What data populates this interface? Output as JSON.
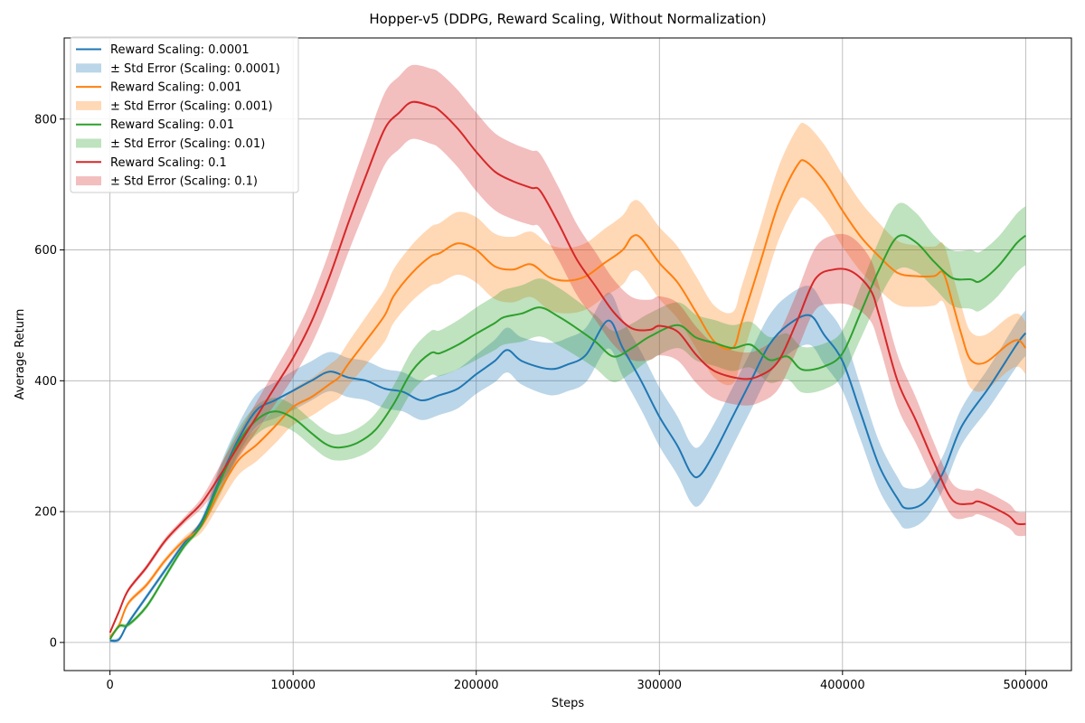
{
  "chart_data": {
    "type": "line",
    "title": "Hopper-v5 (DDPG, Reward Scaling, Without Normalization)",
    "xlabel": "Steps",
    "ylabel": "Average Return",
    "xlim": [
      -25000,
      525000
    ],
    "ylim": [
      -43,
      924
    ],
    "xticks": [
      0,
      100000,
      200000,
      300000,
      400000,
      500000
    ],
    "yticks": [
      0,
      200,
      400,
      600,
      800
    ],
    "grid": true,
    "legend_position": "top-left",
    "legend": [
      "Reward Scaling: 0.0001",
      "± Std Error (Scaling: 0.0001)",
      "Reward Scaling: 0.001",
      "± Std Error (Scaling: 0.001)",
      "Reward Scaling: 0.01",
      "± Std Error (Scaling: 0.01)",
      "Reward Scaling: 0.1",
      "± Std Error (Scaling: 0.1)"
    ],
    "series": [
      {
        "name": "Reward Scaling: 0.0001",
        "band_name": "± Std Error (Scaling: 0.0001)",
        "color": "#1f77b4",
        "points": [
          [
            0,
            3
          ],
          [
            5000,
            5
          ],
          [
            10000,
            30
          ],
          [
            20000,
            70
          ],
          [
            30000,
            110
          ],
          [
            40000,
            150
          ],
          [
            50000,
            185
          ],
          [
            60000,
            250
          ],
          [
            70000,
            310
          ],
          [
            80000,
            355
          ],
          [
            90000,
            370
          ],
          [
            100000,
            385
          ],
          [
            110000,
            400
          ],
          [
            120000,
            414
          ],
          [
            130000,
            405
          ],
          [
            140000,
            400
          ],
          [
            150000,
            388
          ],
          [
            160000,
            383
          ],
          [
            170000,
            370
          ],
          [
            180000,
            378
          ],
          [
            190000,
            388
          ],
          [
            200000,
            410
          ],
          [
            210000,
            430
          ],
          [
            217000,
            447
          ],
          [
            225000,
            430
          ],
          [
            240000,
            418
          ],
          [
            250000,
            425
          ],
          [
            260000,
            440
          ],
          [
            272000,
            492
          ],
          [
            280000,
            450
          ],
          [
            290000,
            400
          ],
          [
            300000,
            345
          ],
          [
            310000,
            300
          ],
          [
            317000,
            260
          ],
          [
            322000,
            255
          ],
          [
            330000,
            290
          ],
          [
            340000,
            345
          ],
          [
            350000,
            400
          ],
          [
            360000,
            455
          ],
          [
            370000,
            485
          ],
          [
            382000,
            500
          ],
          [
            390000,
            470
          ],
          [
            400000,
            430
          ],
          [
            410000,
            350
          ],
          [
            420000,
            270
          ],
          [
            430000,
            220
          ],
          [
            435000,
            205
          ],
          [
            445000,
            215
          ],
          [
            455000,
            260
          ],
          [
            465000,
            330
          ],
          [
            480000,
            390
          ],
          [
            495000,
            455
          ],
          [
            500000,
            473
          ]
        ],
        "err": [
          [
            0,
            3
          ],
          [
            50000,
            5
          ],
          [
            60000,
            20
          ],
          [
            80000,
            25
          ],
          [
            100000,
            30
          ],
          [
            130000,
            30
          ],
          [
            200000,
            30
          ],
          [
            240000,
            40
          ],
          [
            300000,
            45
          ],
          [
            400000,
            45
          ],
          [
            450000,
            25
          ],
          [
            500000,
            35
          ]
        ]
      },
      {
        "name": "Reward Scaling: 0.001",
        "band_name": "± Std Error (Scaling: 0.001)",
        "color": "#ff7f0e",
        "points": [
          [
            0,
            8
          ],
          [
            5000,
            27
          ],
          [
            10000,
            60
          ],
          [
            20000,
            88
          ],
          [
            30000,
            125
          ],
          [
            40000,
            155
          ],
          [
            50000,
            178
          ],
          [
            60000,
            232
          ],
          [
            70000,
            278
          ],
          [
            80000,
            302
          ],
          [
            90000,
            330
          ],
          [
            100000,
            360
          ],
          [
            110000,
            375
          ],
          [
            120000,
            395
          ],
          [
            125000,
            405
          ],
          [
            130000,
            425
          ],
          [
            140000,
            462
          ],
          [
            150000,
            500
          ],
          [
            155000,
            530
          ],
          [
            165000,
            565
          ],
          [
            175000,
            590
          ],
          [
            180000,
            595
          ],
          [
            190000,
            610
          ],
          [
            200000,
            600
          ],
          [
            210000,
            575
          ],
          [
            220000,
            570
          ],
          [
            230000,
            578
          ],
          [
            240000,
            558
          ],
          [
            250000,
            553
          ],
          [
            260000,
            560
          ],
          [
            270000,
            580
          ],
          [
            280000,
            600
          ],
          [
            285000,
            620
          ],
          [
            290000,
            618
          ],
          [
            300000,
            580
          ],
          [
            310000,
            550
          ],
          [
            320000,
            505
          ],
          [
            330000,
            460
          ],
          [
            340000,
            450
          ],
          [
            345000,
            490
          ],
          [
            355000,
            580
          ],
          [
            365000,
            670
          ],
          [
            375000,
            728
          ],
          [
            380000,
            735
          ],
          [
            390000,
            705
          ],
          [
            400000,
            660
          ],
          [
            410000,
            620
          ],
          [
            420000,
            590
          ],
          [
            430000,
            565
          ],
          [
            440000,
            560
          ],
          [
            450000,
            560
          ],
          [
            455000,
            565
          ],
          [
            460000,
            520
          ],
          [
            465000,
            470
          ],
          [
            470000,
            432
          ],
          [
            478000,
            428
          ],
          [
            490000,
            455
          ],
          [
            496000,
            462
          ],
          [
            500000,
            450
          ]
        ],
        "err": [
          [
            0,
            3
          ],
          [
            40000,
            5
          ],
          [
            50000,
            10
          ],
          [
            60000,
            20
          ],
          [
            80000,
            25
          ],
          [
            120000,
            30
          ],
          [
            150000,
            40
          ],
          [
            200000,
            50
          ],
          [
            250000,
            50
          ],
          [
            300000,
            55
          ],
          [
            350000,
            55
          ],
          [
            380000,
            57
          ],
          [
            400000,
            55
          ],
          [
            450000,
            45
          ],
          [
            500000,
            40
          ]
        ]
      },
      {
        "name": "Reward Scaling: 0.01",
        "band_name": "± Std Error (Scaling: 0.01)",
        "color": "#2ca02c",
        "points": [
          [
            0,
            5
          ],
          [
            5000,
            25
          ],
          [
            10000,
            27
          ],
          [
            20000,
            55
          ],
          [
            30000,
            100
          ],
          [
            40000,
            145
          ],
          [
            50000,
            180
          ],
          [
            60000,
            245
          ],
          [
            70000,
            305
          ],
          [
            80000,
            340
          ],
          [
            90000,
            353
          ],
          [
            100000,
            343
          ],
          [
            110000,
            320
          ],
          [
            118000,
            303
          ],
          [
            125000,
            298
          ],
          [
            135000,
            305
          ],
          [
            145000,
            325
          ],
          [
            155000,
            365
          ],
          [
            165000,
            415
          ],
          [
            175000,
            442
          ],
          [
            180000,
            442
          ],
          [
            190000,
            455
          ],
          [
            200000,
            472
          ],
          [
            210000,
            488
          ],
          [
            215000,
            497
          ],
          [
            225000,
            503
          ],
          [
            235000,
            512
          ],
          [
            245000,
            498
          ],
          [
            255000,
            480
          ],
          [
            265000,
            460
          ],
          [
            275000,
            437
          ],
          [
            285000,
            450
          ],
          [
            295000,
            468
          ],
          [
            310000,
            485
          ],
          [
            320000,
            466
          ],
          [
            330000,
            458
          ],
          [
            340000,
            450
          ],
          [
            350000,
            455
          ],
          [
            360000,
            432
          ],
          [
            370000,
            437
          ],
          [
            378000,
            417
          ],
          [
            390000,
            422
          ],
          [
            400000,
            442
          ],
          [
            410000,
            505
          ],
          [
            420000,
            570
          ],
          [
            430000,
            620
          ],
          [
            440000,
            612
          ],
          [
            450000,
            582
          ],
          [
            460000,
            557
          ],
          [
            470000,
            555
          ],
          [
            475000,
            552
          ],
          [
            485000,
            575
          ],
          [
            495000,
            610
          ],
          [
            500000,
            622
          ]
        ],
        "err": [
          [
            0,
            3
          ],
          [
            50000,
            5
          ],
          [
            60000,
            20
          ],
          [
            80000,
            22
          ],
          [
            100000,
            20
          ],
          [
            130000,
            20
          ],
          [
            160000,
            30
          ],
          [
            200000,
            40
          ],
          [
            240000,
            45
          ],
          [
            270000,
            40
          ],
          [
            300000,
            35
          ],
          [
            350000,
            35
          ],
          [
            400000,
            35
          ],
          [
            430000,
            50
          ],
          [
            450000,
            40
          ],
          [
            470000,
            45
          ],
          [
            500000,
            45
          ]
        ]
      },
      {
        "name": "Reward Scaling: 0.1",
        "band_name": "± Std Error (Scaling: 0.1)",
        "color": "#d62728",
        "points": [
          [
            0,
            15
          ],
          [
            5000,
            48
          ],
          [
            10000,
            80
          ],
          [
            20000,
            115
          ],
          [
            30000,
            155
          ],
          [
            40000,
            185
          ],
          [
            50000,
            213
          ],
          [
            60000,
            255
          ],
          [
            70000,
            300
          ],
          [
            80000,
            345
          ],
          [
            90000,
            390
          ],
          [
            100000,
            435
          ],
          [
            110000,
            490
          ],
          [
            120000,
            560
          ],
          [
            130000,
            640
          ],
          [
            140000,
            715
          ],
          [
            150000,
            785
          ],
          [
            158000,
            810
          ],
          [
            165000,
            826
          ],
          [
            175000,
            820
          ],
          [
            180000,
            813
          ],
          [
            190000,
            785
          ],
          [
            200000,
            750
          ],
          [
            210000,
            720
          ],
          [
            220000,
            705
          ],
          [
            230000,
            695
          ],
          [
            235000,
            690
          ],
          [
            245000,
            640
          ],
          [
            255000,
            585
          ],
          [
            265000,
            545
          ],
          [
            275000,
            505
          ],
          [
            285000,
            480
          ],
          [
            295000,
            478
          ],
          [
            300000,
            484
          ],
          [
            310000,
            475
          ],
          [
            320000,
            440
          ],
          [
            330000,
            415
          ],
          [
            345000,
            403
          ],
          [
            355000,
            408
          ],
          [
            365000,
            430
          ],
          [
            375000,
            490
          ],
          [
            385000,
            555
          ],
          [
            395000,
            570
          ],
          [
            405000,
            567
          ],
          [
            415000,
            540
          ],
          [
            420000,
            500
          ],
          [
            430000,
            400
          ],
          [
            440000,
            340
          ],
          [
            450000,
            275
          ],
          [
            460000,
            218
          ],
          [
            470000,
            212
          ],
          [
            475000,
            215
          ],
          [
            490000,
            195
          ],
          [
            495000,
            182
          ],
          [
            500000,
            181
          ]
        ],
        "err": [
          [
            0,
            3
          ],
          [
            40000,
            5
          ],
          [
            50000,
            8
          ],
          [
            60000,
            15
          ],
          [
            100000,
            30
          ],
          [
            150000,
            55
          ],
          [
            200000,
            60
          ],
          [
            250000,
            55
          ],
          [
            300000,
            45
          ],
          [
            350000,
            40
          ],
          [
            380000,
            45
          ],
          [
            400000,
            55
          ],
          [
            430000,
            40
          ],
          [
            450000,
            30
          ],
          [
            470000,
            20
          ],
          [
            500000,
            18
          ]
        ]
      }
    ]
  }
}
